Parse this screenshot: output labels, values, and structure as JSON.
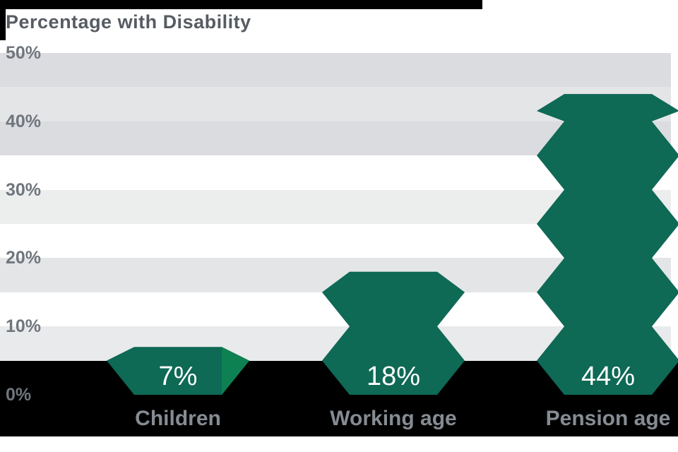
{
  "title": "Percentage with Disability",
  "chart_data": {
    "type": "bar",
    "title": "Percentage with Disability",
    "categories": [
      "Children",
      "Working age",
      "Pension age"
    ],
    "values": [
      7,
      18,
      44
    ],
    "value_labels": [
      "7%",
      "18%",
      "44%"
    ],
    "yticks": [
      "50%",
      "40%",
      "30%",
      "20%",
      "10%",
      "0%"
    ],
    "ytick_values": [
      50,
      40,
      30,
      20,
      10,
      0
    ],
    "ylim": [
      0,
      50
    ],
    "xlabel": "",
    "ylabel": "",
    "legend": "none",
    "grid": "horizontal-bands",
    "bar_style": "zigzag-hexagon-column",
    "colors": {
      "bar": "#0e6955",
      "bar_highlight": "#0e8152",
      "value_text": "#ffffff",
      "axis_text": "#70767d",
      "category_text": "#868c93",
      "title_text": "#575c63",
      "band_dark": "#dbdce0",
      "band_medium": "#e4e5e7",
      "band_light": "#eceeee",
      "band_white": "#ffffff",
      "below_axis": "#000000"
    },
    "band_colors_top_to_bottom": [
      "#dbdce0",
      "#e4e5e7",
      "#dbdce0",
      "#ffffff",
      "#eceeee",
      "#ffffff",
      "#e4e5e7",
      "#ffffff",
      "#e9eaeb"
    ]
  }
}
